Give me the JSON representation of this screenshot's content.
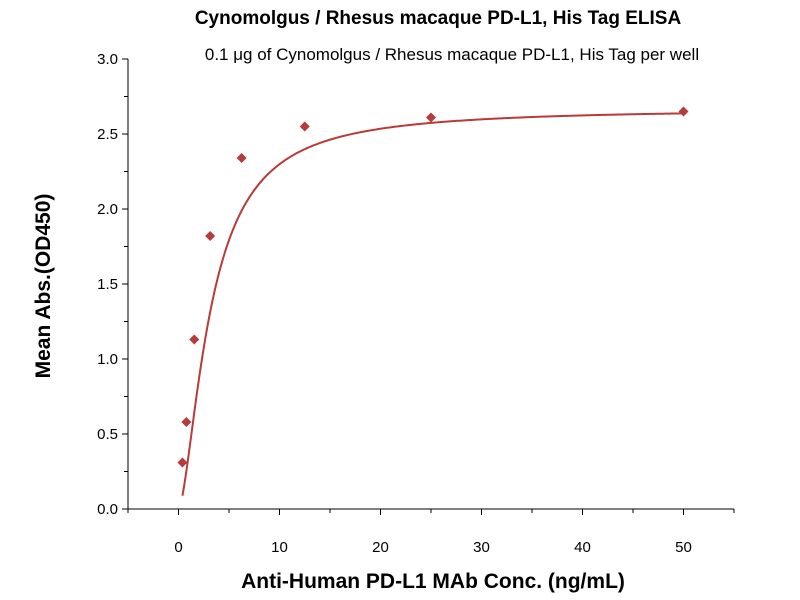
{
  "chart_data": {
    "type": "scatter",
    "title": "Cynomolgus / Rhesus macaque PD-L1, His Tag ELISA",
    "subtitle": "0.1 μg of Cynomolgus / Rhesus macaque PD-L1, His Tag per well",
    "xlabel": "Anti-Human PD-L1 MAb Conc. (ng/mL)",
    "ylabel": "Mean Abs.(OD450)",
    "xlim": [
      -5,
      55
    ],
    "ylim": [
      0,
      3
    ],
    "x_ticks": [
      0,
      10,
      20,
      30,
      40,
      50
    ],
    "x_tick_labels": [
      "0",
      "10",
      "20",
      "30",
      "40",
      "50"
    ],
    "y_ticks": [
      0,
      0.5,
      1,
      1.5,
      2,
      2.5,
      3
    ],
    "y_tick_labels": [
      "0.0",
      "0.5",
      "1.0",
      "1.5",
      "2.0",
      "2.5",
      "3.0"
    ],
    "grid": false,
    "series": [
      {
        "color": "#b83a3a",
        "marker": "diamond",
        "fit": "four-parameter logistic",
        "x": [
          0.39,
          0.78,
          1.56,
          3.13,
          6.25,
          12.5,
          25,
          50
        ],
        "y": [
          0.31,
          0.58,
          1.13,
          1.82,
          2.34,
          2.55,
          2.61,
          2.65
        ]
      }
    ]
  }
}
